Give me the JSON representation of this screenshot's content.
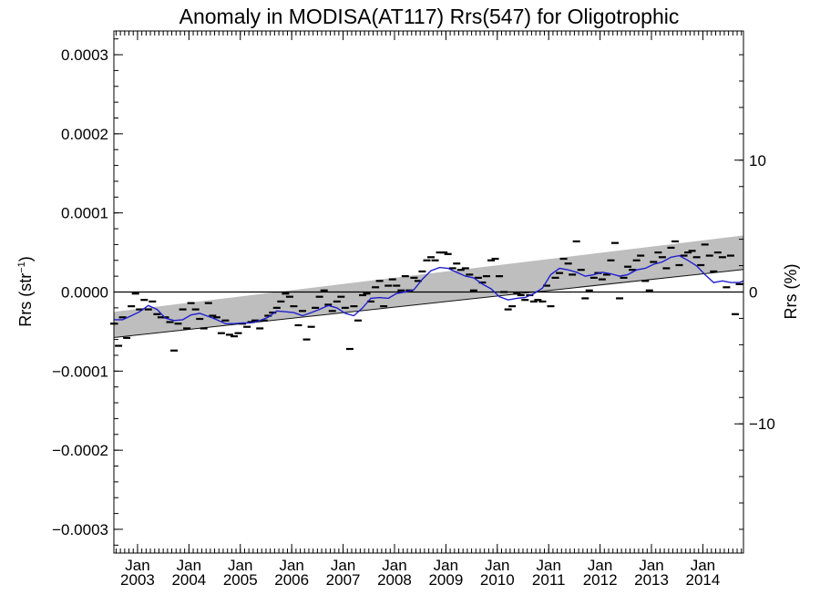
{
  "chart_data": {
    "type": "scatter",
    "title": "Anomaly in MODISA(AT117) Rrs(547) for Oligotrophic",
    "ylabel_main": "Rrs (str",
    "ylabel_sup": "−1",
    "ylabel_close": ")",
    "y2label": "Rrs (%)",
    "x_start": "2002-07-15",
    "x_end": "2014-10-15",
    "xlim_years": [
      2002.54,
      2014.79
    ],
    "ylim": [
      -0.00033,
      0.00033
    ],
    "y2lim": [
      -19.8,
      19.8
    ],
    "grid": false,
    "yticks": [
      {
        "v": 0.0003,
        "label": "0.0003"
      },
      {
        "v": 0.0002,
        "label": "0.0002"
      },
      {
        "v": 0.0001,
        "label": "0.0001"
      },
      {
        "v": 0.0,
        "label": "0.0000"
      },
      {
        "v": -0.0001,
        "label": "−0.0001"
      },
      {
        "v": -0.0002,
        "label": "−0.0002"
      },
      {
        "v": -0.0003,
        "label": "−0.0003"
      }
    ],
    "y2ticks": [
      {
        "v": 10,
        "label": "10"
      },
      {
        "v": 0,
        "label": "0"
      },
      {
        "v": -10,
        "label": "−10"
      }
    ],
    "xticks": [
      {
        "year": 2003,
        "month": "Jan",
        "label": "2003"
      },
      {
        "year": 2004,
        "month": "Jan",
        "label": "2004"
      },
      {
        "year": 2005,
        "month": "Jan",
        "label": "2005"
      },
      {
        "year": 2006,
        "month": "Jan",
        "label": "2006"
      },
      {
        "year": 2007,
        "month": "Jan",
        "label": "2007"
      },
      {
        "year": 2008,
        "month": "Jan",
        "label": "2008"
      },
      {
        "year": 2009,
        "month": "Jan",
        "label": "2009"
      },
      {
        "year": 2010,
        "month": "Jan",
        "label": "2010"
      },
      {
        "year": 2011,
        "month": "Jan",
        "label": "2011"
      },
      {
        "year": 2012,
        "month": "Jan",
        "label": "2012"
      },
      {
        "year": 2013,
        "month": "Jan",
        "label": "2013"
      },
      {
        "year": 2014,
        "month": "Jan",
        "label": "2014"
      }
    ],
    "trend_band": {
      "x": [
        2002.54,
        2014.79
      ],
      "lower": [
        -5.75e-05,
        2.85e-05
      ],
      "upper": [
        -2.5e-05,
        7.15e-05
      ]
    },
    "zero_line": 0.0,
    "colors": {
      "points": "#000000",
      "smooth": "#1f1fcf",
      "band": "#bebebe",
      "axes": "#000000"
    },
    "series": [
      {
        "marker": "dash",
        "x": [
          2002.54,
          2002.63,
          2002.71,
          2002.79,
          2002.88,
          2002.96,
          2003.04,
          2003.13,
          2003.21,
          2003.29,
          2003.38,
          2003.46,
          2003.54,
          2003.63,
          2003.71,
          2003.79,
          2003.88,
          2003.96,
          2004.04,
          2004.13,
          2004.21,
          2004.29,
          2004.38,
          2004.46,
          2004.54,
          2004.63,
          2004.71,
          2004.79,
          2004.88,
          2004.96,
          2005.04,
          2005.13,
          2005.21,
          2005.29,
          2005.38,
          2005.46,
          2005.54,
          2005.63,
          2005.71,
          2005.79,
          2005.88,
          2005.96,
          2006.04,
          2006.13,
          2006.21,
          2006.29,
          2006.38,
          2006.46,
          2006.54,
          2006.63,
          2006.71,
          2006.79,
          2006.88,
          2006.96,
          2007.04,
          2007.13,
          2007.21,
          2007.29,
          2007.38,
          2007.46,
          2007.54,
          2007.63,
          2007.71,
          2007.79,
          2007.88,
          2007.96,
          2008.04,
          2008.13,
          2008.21,
          2008.29,
          2008.38,
          2008.46,
          2008.54,
          2008.63,
          2008.71,
          2008.79,
          2008.88,
          2008.96,
          2009.04,
          2009.13,
          2009.21,
          2009.29,
          2009.38,
          2009.46,
          2009.54,
          2009.63,
          2009.71,
          2009.79,
          2009.88,
          2009.96,
          2010.04,
          2010.13,
          2010.21,
          2010.29,
          2010.38,
          2010.46,
          2010.54,
          2010.63,
          2010.71,
          2010.79,
          2010.88,
          2010.96,
          2011.04,
          2011.13,
          2011.21,
          2011.29,
          2011.38,
          2011.46,
          2011.54,
          2011.63,
          2011.71,
          2011.79,
          2011.88,
          2011.96,
          2012.04,
          2012.13,
          2012.21,
          2012.29,
          2012.38,
          2012.46,
          2012.54,
          2012.63,
          2012.71,
          2012.79,
          2012.88,
          2012.96,
          2013.04,
          2013.13,
          2013.21,
          2013.29,
          2013.38,
          2013.46,
          2013.54,
          2013.63,
          2013.71,
          2013.79,
          2013.88,
          2013.96,
          2014.04,
          2014.13,
          2014.21,
          2014.29,
          2014.38,
          2014.46,
          2014.54,
          2014.63,
          2014.71
        ],
        "y": [
          -4e-05,
          -6.8e-05,
          -3.2e-05,
          -5.8e-05,
          -1.8e-05,
          -2e-06,
          -2.2e-05,
          -1e-05,
          -2.2e-05,
          -1.2e-05,
          -2.8e-05,
          -3.2e-05,
          -3.2e-05,
          -3.8e-05,
          -7.4e-05,
          -4e-05,
          -2.2e-05,
          -4.6e-05,
          -1.4e-05,
          -2.2e-05,
          -3.4e-05,
          -4.6e-05,
          -1.4e-05,
          -3e-05,
          -3.2e-05,
          -5.2e-05,
          -3.6e-05,
          -5.4e-05,
          -5.6e-05,
          -5.2e-05,
          -4e-05,
          -4.4e-05,
          -3.8e-05,
          -3.6e-05,
          -4.6e-05,
          -3.6e-05,
          -3e-05,
          -2.6e-05,
          -2e-05,
          -1.2e-05,
          -2e-06,
          -6e-06,
          -1.8e-05,
          -4.2e-05,
          -2.4e-05,
          -6e-05,
          -4.4e-05,
          -2e-05,
          -6e-06,
          2e-06,
          -1.6e-05,
          -2.4e-05,
          -1.2e-05,
          -6e-06,
          -2e-05,
          -7.2e-05,
          -1.8e-05,
          -3.6e-05,
          -4e-06,
          -2e-06,
          -1.2e-05,
          6e-06,
          1.4e-05,
          -1.8e-05,
          8e-06,
          1.6e-05,
          8e-06,
          2e-06,
          2e-05,
          2e-06,
          1.8e-05,
          1.4e-05,
          2.6e-05,
          4e-05,
          4.4e-05,
          4e-05,
          5e-05,
          5e-05,
          4.8e-05,
          3e-05,
          3.6e-05,
          2.8e-05,
          3e-05,
          2.2e-05,
          2e-06,
          1.8e-05,
          1.2e-05,
          2e-05,
          4e-05,
          4.2e-05,
          2e-05,
          0.0,
          -2.2e-05,
          -1.8e-05,
          -2e-06,
          -4e-06,
          -1e-05,
          -4e-06,
          -1.2e-05,
          -1e-05,
          -1.2e-05,
          8e-06,
          -1.8e-05,
          1.8e-05,
          2.4e-05,
          4.2e-05,
          3.6e-05,
          2.2e-05,
          6.4e-05,
          2.8e-05,
          -8e-06,
          2e-06,
          1.8e-05,
          2.4e-05,
          1.6e-05,
          2.2e-05,
          4e-05,
          6.2e-05,
          -8e-06,
          1.8e-05,
          3.2e-05,
          2.8e-05,
          4e-05,
          4.6e-05,
          1.4e-05,
          2e-06,
          3.8e-05,
          5e-05,
          4.4e-05,
          3e-05,
          5.6e-05,
          6.4e-05,
          3.4e-05,
          4.6e-05,
          5e-05,
          5.2e-05,
          4.4e-05,
          3.4e-05,
          6e-05,
          4.6e-05,
          2.6e-05,
          5e-05,
          4.4e-05,
          6e-06,
          4.6e-05,
          -2.8e-05,
          1e-05
        ]
      },
      {
        "marker": "line",
        "x": [
          2002.54,
          2002.71,
          2002.88,
          2003.04,
          2003.21,
          2003.38,
          2003.54,
          2003.71,
          2003.88,
          2004.04,
          2004.21,
          2004.38,
          2004.54,
          2004.71,
          2004.88,
          2005.04,
          2005.21,
          2005.38,
          2005.54,
          2005.71,
          2005.88,
          2006.04,
          2006.21,
          2006.38,
          2006.54,
          2006.71,
          2006.88,
          2007.04,
          2007.21,
          2007.38,
          2007.54,
          2007.71,
          2007.88,
          2008.04,
          2008.21,
          2008.38,
          2008.54,
          2008.71,
          2008.88,
          2009.04,
          2009.21,
          2009.38,
          2009.54,
          2009.71,
          2009.88,
          2010.04,
          2010.21,
          2010.38,
          2010.54,
          2010.71,
          2010.88,
          2011.04,
          2011.21,
          2011.38,
          2011.54,
          2011.71,
          2011.88,
          2012.04,
          2012.21,
          2012.38,
          2012.54,
          2012.71,
          2012.88,
          2013.04,
          2013.21,
          2013.38,
          2013.54,
          2013.71,
          2013.88,
          2014.04,
          2014.21,
          2014.38,
          2014.54,
          2014.71,
          2014.79
        ],
        "y": [
          -3.5e-05,
          -3.5e-05,
          -3e-05,
          -2.5e-05,
          -1.7e-05,
          -2.2e-05,
          -3.3e-05,
          -3.6e-05,
          -3.5e-05,
          -2.9e-05,
          -2.7e-05,
          -3.1e-05,
          -3.5e-05,
          -4e-05,
          -4e-05,
          -3.9e-05,
          -3.9e-05,
          -3.6e-05,
          -3.2e-05,
          -2.4e-05,
          -2.5e-05,
          -2.6e-05,
          -3e-05,
          -2.6e-05,
          -2.2e-05,
          -1.7e-05,
          -2e-05,
          -2.7e-05,
          -3e-05,
          -2e-05,
          -8e-06,
          -7e-06,
          -8e-06,
          -2e-06,
          0.0,
          3e-06,
          1.6e-05,
          2.7e-05,
          3.1e-05,
          3e-05,
          2.5e-05,
          2e-05,
          1.8e-05,
          1e-05,
          4e-06,
          -6e-06,
          -1e-05,
          -8e-06,
          -7e-06,
          -2e-06,
          5e-06,
          2.2e-05,
          3e-05,
          2.8e-05,
          2.5e-05,
          2e-05,
          2.2e-05,
          2.5e-05,
          2.3e-05,
          2e-05,
          2.2e-05,
          2.8e-05,
          3e-05,
          3.5e-05,
          3.8e-05,
          4.4e-05,
          4.6e-05,
          4e-05,
          3.3e-05,
          2.2e-05,
          1.2e-05,
          1.4e-05,
          1.2e-05,
          1.2e-05,
          1.4e-05
        ]
      }
    ]
  }
}
